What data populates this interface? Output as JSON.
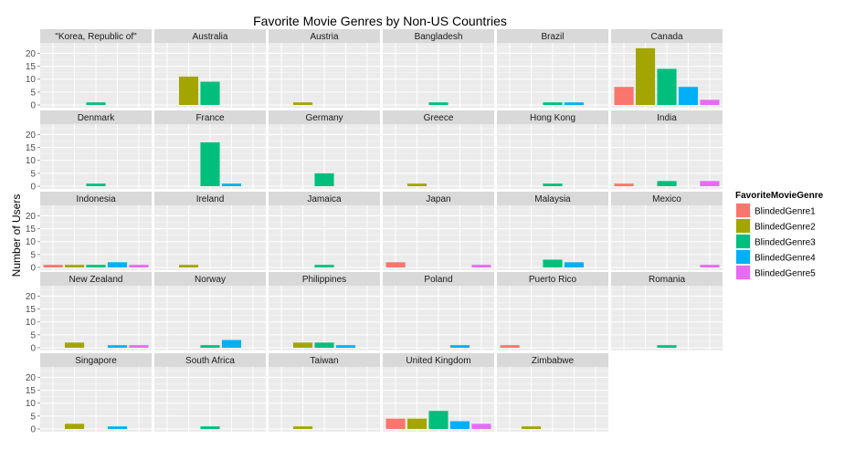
{
  "chart_data": {
    "type": "bar",
    "title": "Favorite Movie Genres by Non-US Countries",
    "ylabel": "Number of Users",
    "xlabel": "",
    "ylim": [
      0,
      23
    ],
    "yticks": [
      0,
      5,
      10,
      15,
      20
    ],
    "grid": true,
    "legend": {
      "title": "FavoriteMovieGenre",
      "position": "right",
      "entries": [
        {
          "name": "BlindedGenre1",
          "color": "#F8766D"
        },
        {
          "name": "BlindedGenre2",
          "color": "#A3A500"
        },
        {
          "name": "BlindedGenre3",
          "color": "#00BF7D"
        },
        {
          "name": "BlindedGenre4",
          "color": "#00B0F6"
        },
        {
          "name": "BlindedGenre5",
          "color": "#E76BF3"
        }
      ]
    },
    "categories": [
      "BlindedGenre1",
      "BlindedGenre2",
      "BlindedGenre3",
      "BlindedGenre4",
      "BlindedGenre5"
    ],
    "panels": [
      {
        "name": "\"Korea, Republic of\"",
        "values": [
          0,
          0,
          1,
          0,
          0
        ]
      },
      {
        "name": "Australia",
        "values": [
          0,
          11,
          9,
          0,
          0
        ]
      },
      {
        "name": "Austria",
        "values": [
          0,
          1,
          0,
          0,
          0
        ]
      },
      {
        "name": "Bangladesh",
        "values": [
          0,
          0,
          1,
          0,
          0
        ]
      },
      {
        "name": "Brazil",
        "values": [
          0,
          0,
          1,
          1,
          0
        ]
      },
      {
        "name": "Canada",
        "values": [
          7,
          22,
          14,
          7,
          2
        ]
      },
      {
        "name": "Denmark",
        "values": [
          0,
          0,
          1,
          0,
          0
        ]
      },
      {
        "name": "France",
        "values": [
          0,
          0,
          17,
          1,
          0
        ]
      },
      {
        "name": "Germany",
        "values": [
          0,
          0,
          5,
          0,
          0
        ]
      },
      {
        "name": "Greece",
        "values": [
          0,
          1,
          0,
          0,
          0
        ]
      },
      {
        "name": "Hong Kong",
        "values": [
          0,
          0,
          1,
          0,
          0
        ]
      },
      {
        "name": "India",
        "values": [
          1,
          0,
          2,
          0,
          2
        ]
      },
      {
        "name": "Indonesia",
        "values": [
          1,
          1,
          1,
          2,
          1
        ]
      },
      {
        "name": "Ireland",
        "values": [
          0,
          1,
          0,
          0,
          0
        ]
      },
      {
        "name": "Jamaica",
        "values": [
          0,
          0,
          1,
          0,
          0
        ]
      },
      {
        "name": "Japan",
        "values": [
          2,
          0,
          0,
          0,
          1
        ]
      },
      {
        "name": "Malaysia",
        "values": [
          0,
          0,
          3,
          2,
          0
        ]
      },
      {
        "name": "Mexico",
        "values": [
          0,
          0,
          0,
          0,
          1
        ]
      },
      {
        "name": "New Zealand",
        "values": [
          0,
          2,
          0,
          1,
          1
        ]
      },
      {
        "name": "Norway",
        "values": [
          0,
          0,
          1,
          3,
          0
        ]
      },
      {
        "name": "Philippines",
        "values": [
          0,
          2,
          2,
          1,
          0
        ]
      },
      {
        "name": "Poland",
        "values": [
          0,
          0,
          0,
          1,
          0
        ]
      },
      {
        "name": "Puerto Rico",
        "values": [
          1,
          0,
          0,
          0,
          0
        ]
      },
      {
        "name": "Romania",
        "values": [
          0,
          0,
          1,
          0,
          0
        ]
      },
      {
        "name": "Singapore",
        "values": [
          0,
          2,
          0,
          1,
          0
        ]
      },
      {
        "name": "South Africa",
        "values": [
          0,
          0,
          1,
          0,
          0
        ]
      },
      {
        "name": "Taiwan",
        "values": [
          0,
          1,
          0,
          0,
          0
        ]
      },
      {
        "name": "United Kingdom",
        "values": [
          4,
          4,
          7,
          3,
          2
        ]
      },
      {
        "name": "Zimbabwe",
        "values": [
          0,
          1,
          0,
          0,
          0
        ]
      }
    ]
  }
}
